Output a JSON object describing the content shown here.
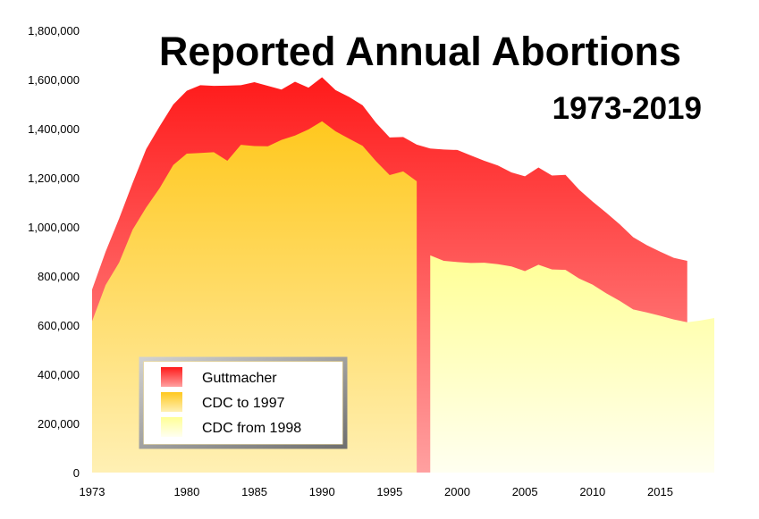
{
  "chart_data": {
    "type": "area",
    "title": "Reported Annual Abortions",
    "subtitle": "1973-2019",
    "xlabel": "",
    "ylabel": "",
    "ylim": [
      0,
      1800000
    ],
    "xlim": [
      1973,
      2019
    ],
    "grid": false,
    "legend_position": "bottom-left",
    "x_ticks": [
      1973,
      1980,
      1985,
      1990,
      1995,
      2000,
      2005,
      2010,
      2015
    ],
    "y_ticks": [
      0,
      200000,
      400000,
      600000,
      800000,
      1000000,
      1200000,
      1400000,
      1600000,
      1800000
    ],
    "y_tick_labels": [
      "0",
      "200,000",
      "400,000",
      "600,000",
      "800,000",
      "1,000,000",
      "1,200,000",
      "1,400,000",
      "1,600,000",
      "1,800,000"
    ],
    "series": [
      {
        "name": "Guttmacher",
        "color_top": "#ff1a1a",
        "color_bottom": "#ffa0a0",
        "x": [
          1973,
          1974,
          1975,
          1976,
          1977,
          1978,
          1979,
          1980,
          1981,
          1982,
          1983,
          1984,
          1985,
          1986,
          1987,
          1988,
          1989,
          1990,
          1991,
          1992,
          1993,
          1994,
          1995,
          1996,
          1997,
          1998,
          1999,
          2000,
          2001,
          2002,
          2003,
          2004,
          2005,
          2006,
          2007,
          2008,
          2009,
          2010,
          2011,
          2012,
          2013,
          2014,
          2015,
          2016,
          2017
        ],
        "values": [
          745000,
          899000,
          1034000,
          1179000,
          1317000,
          1410000,
          1498000,
          1554000,
          1577000,
          1574000,
          1575000,
          1577000,
          1589000,
          1574000,
          1559000,
          1591000,
          1567000,
          1609000,
          1557000,
          1529000,
          1495000,
          1423000,
          1364000,
          1366000,
          1335000,
          1319000,
          1315000,
          1313000,
          1291000,
          1269000,
          1250000,
          1222000,
          1206000,
          1242000,
          1209000,
          1212000,
          1152000,
          1103000,
          1058000,
          1011000,
          958000,
          926000,
          899000,
          874000,
          862000
        ]
      },
      {
        "name": "CDC to 1997",
        "color_top": "#ffc81e",
        "color_bottom": "#fff0b4",
        "x": [
          1973,
          1974,
          1975,
          1976,
          1977,
          1978,
          1979,
          1980,
          1981,
          1982,
          1983,
          1984,
          1985,
          1986,
          1987,
          1988,
          1989,
          1990,
          1991,
          1992,
          1993,
          1994,
          1995,
          1996,
          1997
        ],
        "values": [
          616000,
          763000,
          855000,
          989000,
          1079000,
          1158000,
          1252000,
          1298000,
          1301000,
          1304000,
          1269000,
          1334000,
          1329000,
          1328000,
          1354000,
          1372000,
          1397000,
          1430000,
          1389000,
          1359000,
          1330000,
          1267000,
          1211000,
          1226000,
          1186000
        ]
      },
      {
        "name": "CDC from 1998",
        "color_top": "#ffff96",
        "color_bottom": "#fffff0",
        "x": [
          1998,
          1999,
          2000,
          2001,
          2002,
          2003,
          2004,
          2005,
          2006,
          2007,
          2008,
          2009,
          2010,
          2011,
          2012,
          2013,
          2014,
          2015,
          2016,
          2017,
          2018,
          2019
        ],
        "values": [
          884000,
          862000,
          857000,
          853000,
          854000,
          848000,
          839000,
          820000,
          846000,
          827000,
          825000,
          790000,
          765000,
          730000,
          699000,
          664000,
          652000,
          638000,
          623000,
          612000,
          619000,
          629000
        ]
      }
    ]
  }
}
